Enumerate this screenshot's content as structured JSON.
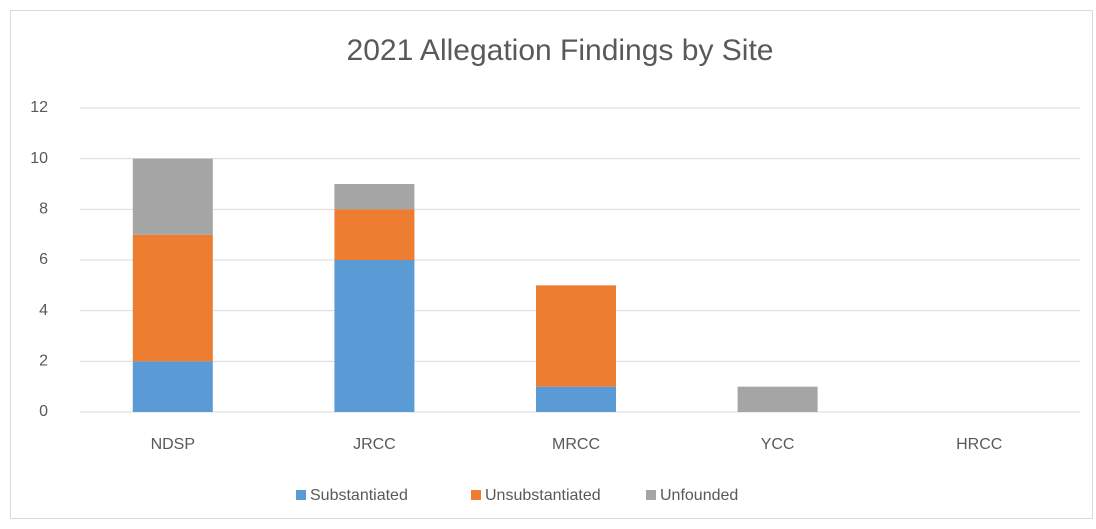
{
  "chart_data": {
    "type": "stacked_bar",
    "title": "2021 Allegation Findings by Site",
    "categories": [
      "NDSP",
      "JRCC",
      "MRCC",
      "YCC",
      "HRCC"
    ],
    "series": [
      {
        "name": "Substantiated",
        "color": "#5b9bd5",
        "values": [
          2,
          6,
          1,
          0,
          0
        ]
      },
      {
        "name": "Unsubstantiated",
        "color": "#ed7d31",
        "values": [
          5,
          2,
          4,
          0,
          0
        ]
      },
      {
        "name": "Unfounded",
        "color": "#a5a5a5",
        "values": [
          3,
          1,
          0,
          1,
          0
        ]
      }
    ],
    "ylim": [
      0,
      12
    ],
    "yticks": [
      0,
      2,
      4,
      6,
      8,
      10,
      12
    ],
    "grid": true,
    "legend": "bottom"
  }
}
